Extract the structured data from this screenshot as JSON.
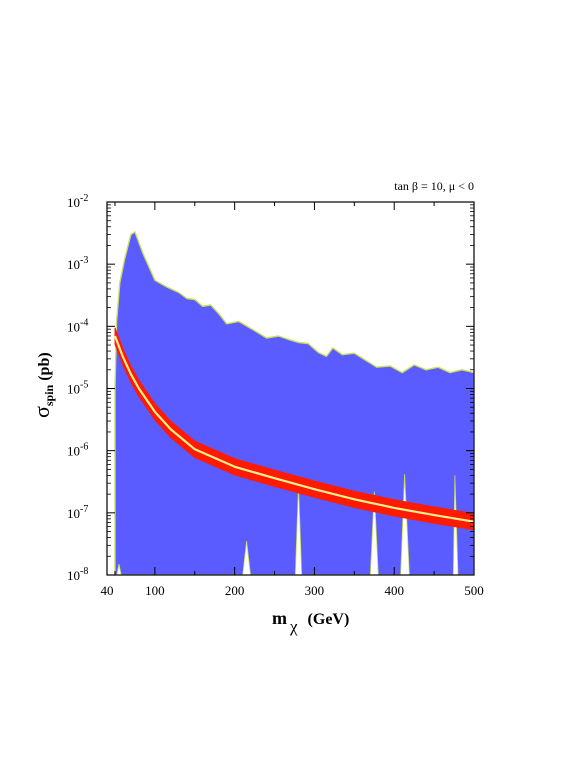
{
  "chart_data": {
    "type": "area",
    "annotation": "tan β = 10, μ < 0",
    "xlabel": {
      "main": "m",
      "sub": "χ",
      "unit": "(GeV)"
    },
    "ylabel": {
      "main": "σ",
      "sub": "spin",
      "unit": "(pb)"
    },
    "xlim": [
      40,
      500
    ],
    "ylim": [
      1e-08,
      0.01
    ],
    "yscale": "log",
    "x_ticks": [
      {
        "value": 40,
        "label": "40"
      },
      {
        "value": 100,
        "label": "100"
      },
      {
        "value": 200,
        "label": "200"
      },
      {
        "value": 300,
        "label": "300"
      },
      {
        "value": 400,
        "label": "400"
      },
      {
        "value": 500,
        "label": "500"
      }
    ],
    "y_ticks": [
      {
        "exp": -2,
        "base": "10",
        "exponent": "-2"
      },
      {
        "exp": -3,
        "base": "10",
        "exponent": "-3"
      },
      {
        "exp": -4,
        "base": "10",
        "exponent": "-4"
      },
      {
        "exp": -5,
        "base": "10",
        "exponent": "-5"
      },
      {
        "exp": -6,
        "base": "10",
        "exponent": "-6"
      },
      {
        "exp": -7,
        "base": "10",
        "exponent": "-7"
      },
      {
        "exp": -8,
        "base": "10",
        "exponent": "-8"
      }
    ],
    "colors": {
      "region_fill": "#5a5cff",
      "region_edge": "#c8e05a",
      "band_outer": "#ff1a00",
      "band_inner": "#fff08a"
    },
    "allowed_region_upper": [
      [
        50,
        1e-05
      ],
      [
        52,
        0.00012
      ],
      [
        56,
        0.0005
      ],
      [
        62,
        0.0012
      ],
      [
        70,
        0.003
      ],
      [
        75,
        0.0033
      ],
      [
        85,
        0.0015
      ],
      [
        100,
        0.00055
      ],
      [
        115,
        0.00043
      ],
      [
        130,
        0.00035
      ],
      [
        140,
        0.00028
      ],
      [
        150,
        0.00027
      ],
      [
        160,
        0.00021
      ],
      [
        170,
        0.00022
      ],
      [
        180,
        0.00016
      ],
      [
        190,
        0.00011
      ],
      [
        205,
        0.00012
      ],
      [
        225,
        8.5e-05
      ],
      [
        240,
        6.5e-05
      ],
      [
        255,
        7e-05
      ],
      [
        270,
        6e-05
      ],
      [
        280,
        5.5e-05
      ],
      [
        292,
        5.3e-05
      ],
      [
        305,
        3.8e-05
      ],
      [
        315,
        3.3e-05
      ],
      [
        323,
        4.5e-05
      ],
      [
        335,
        3.5e-05
      ],
      [
        350,
        3.7e-05
      ],
      [
        365,
        2.8e-05
      ],
      [
        378,
        2.2e-05
      ],
      [
        395,
        2.3e-05
      ],
      [
        410,
        1.8e-05
      ],
      [
        425,
        2.4e-05
      ],
      [
        440,
        2e-05
      ],
      [
        455,
        2.2e-05
      ],
      [
        470,
        1.8e-05
      ],
      [
        485,
        2e-05
      ],
      [
        500,
        1.8e-05
      ]
    ],
    "allowed_region_lower_gaps": [
      {
        "x": [
          52,
          55,
          58
        ],
        "y_top": 1.5e-08
      },
      {
        "x": [
          210,
          215,
          220
        ],
        "y_top": 3.5e-08
      },
      {
        "x": [
          276,
          280,
          284
        ],
        "y_top": 2.8e-07
      },
      {
        "x": [
          370,
          375,
          380
        ],
        "y_top": 2.2e-07
      },
      {
        "x": [
          408,
          413,
          419
        ],
        "y_top": 4.2e-07
      },
      {
        "x": [
          474,
          476,
          480
        ],
        "y_top": 4e-07
      }
    ],
    "band": {
      "x": [
        50,
        60,
        70,
        80,
        100,
        120,
        150,
        200,
        250,
        300,
        350,
        400,
        450,
        500
      ],
      "center": [
        7e-05,
        3.2e-05,
        1.7e-05,
        1e-05,
        4.2e-06,
        2.2e-06,
        1.05e-06,
        5.5e-07,
        3.6e-07,
        2.4e-07,
        1.65e-07,
        1.2e-07,
        9.2e-08,
        7.2e-08
      ],
      "width_factor": 1.35
    }
  }
}
